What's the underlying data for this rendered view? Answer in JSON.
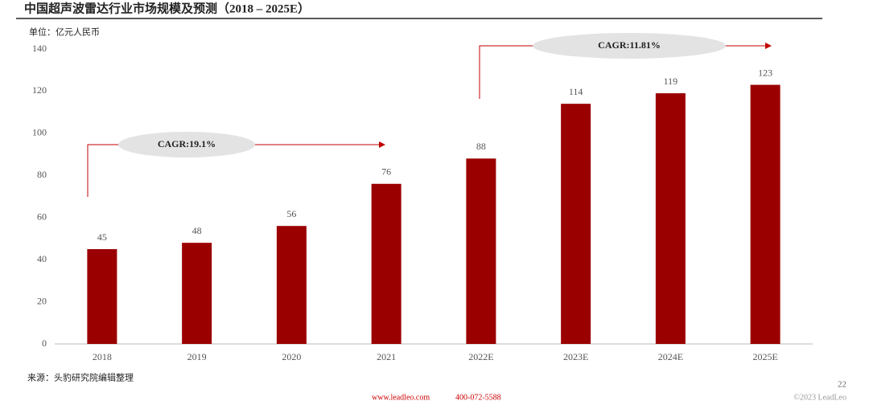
{
  "chart_data": {
    "type": "bar",
    "title": "中国超声波雷达行业市场规模及预测（2018 – 2025E）",
    "unit": "单位：亿元人民币",
    "categories": [
      "2018",
      "2019",
      "2020",
      "2021",
      "2022E",
      "2023E",
      "2024E",
      "2025E"
    ],
    "values": [
      45,
      48,
      56,
      76,
      88,
      114,
      119,
      123
    ],
    "color": "#9b0000",
    "ylim": [
      0,
      140
    ],
    "yticks": [
      0,
      20,
      40,
      60,
      80,
      100,
      120,
      140
    ],
    "annotations": [
      "CAGR:19.1%",
      "CAGR:11.81%"
    ],
    "source": "来源：头豹研究院编辑整理"
  },
  "footer": {
    "page": "22",
    "website": "www.leadleo.com",
    "phone": "400-072-5588",
    "copyright": "©2023 LeadLeo"
  }
}
